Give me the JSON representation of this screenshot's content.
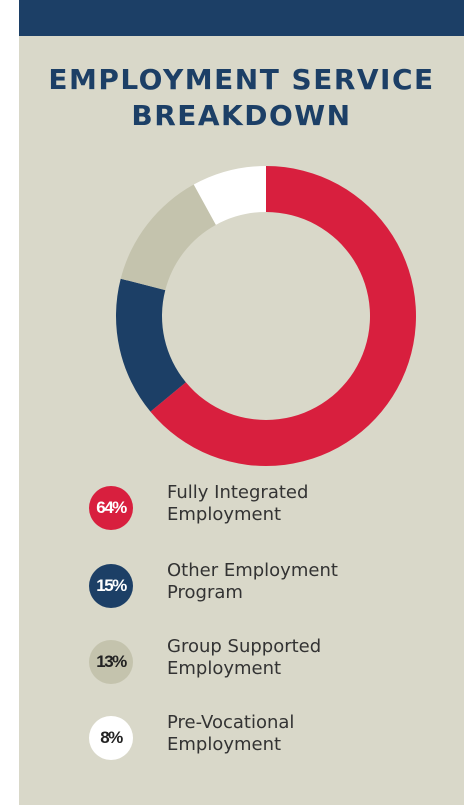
{
  "header": {
    "title_line1": "EMPLOYMENT SERVICE",
    "title_line2": "BREAKDOWN"
  },
  "colors": {
    "background": "#d9d8c9",
    "top_bar": "#1c3f66",
    "title": "#1c3f66"
  },
  "chart_data": {
    "type": "pie",
    "style": "donut",
    "title": "EMPLOYMENT SERVICE BREAKDOWN",
    "legend_position": "bottom",
    "slices": [
      {
        "label_line1": "Fully Integrated",
        "label_line2": "Employment",
        "value": 64,
        "value_label": "64%",
        "color": "#d81f3e",
        "text_color": "#ffffff"
      },
      {
        "label_line1": "Other Employment",
        "label_line2": "Program",
        "value": 15,
        "value_label": "15%",
        "color": "#1c3f66",
        "text_color": "#ffffff"
      },
      {
        "label_line1": "Group Supported",
        "label_line2": "Employment",
        "value": 13,
        "value_label": "13%",
        "color": "#c4c3ad",
        "text_color": "#222222"
      },
      {
        "label_line1": "Pre-Vocational",
        "label_line2": "Employment",
        "value": 8,
        "value_label": "8%",
        "color": "#ffffff",
        "text_color": "#222222"
      }
    ]
  }
}
